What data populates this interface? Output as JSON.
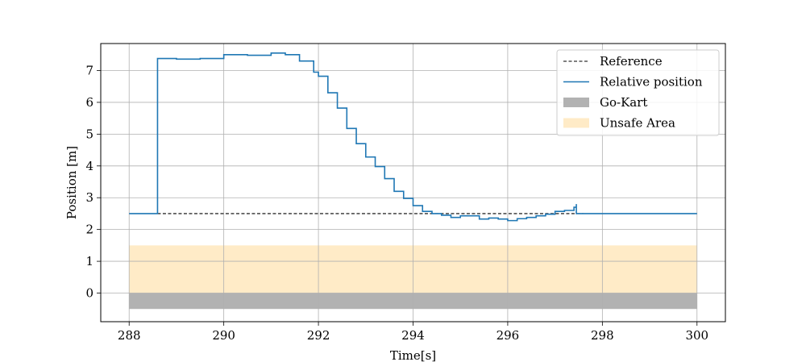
{
  "chart_data": {
    "type": "line",
    "xlabel": "Time[s]",
    "ylabel": "Position [m]",
    "xlim": [
      287.4,
      300.6
    ],
    "ylim": [
      -0.9,
      7.85
    ],
    "xticks": [
      288,
      290,
      292,
      294,
      296,
      298,
      300
    ],
    "yticks": [
      0,
      1,
      2,
      3,
      4,
      5,
      6,
      7
    ],
    "grid": true,
    "legend_position": "top-right",
    "series": [
      {
        "name": "Reference",
        "style": "dashed",
        "color": "#000000",
        "x": [
          288.6,
          297.6
        ],
        "y": [
          2.5,
          2.5
        ]
      },
      {
        "name": "Relative position",
        "style": "step",
        "color": "#1f77b4",
        "x": [
          288.0,
          288.6,
          288.6,
          288.62,
          289.0,
          289.5,
          290.0,
          290.5,
          291.0,
          291.3,
          291.6,
          291.9,
          292.0,
          292.2,
          292.4,
          292.6,
          292.8,
          293.0,
          293.2,
          293.4,
          293.6,
          293.8,
          294.0,
          294.2,
          294.4,
          294.6,
          294.8,
          295.0,
          295.2,
          295.4,
          295.6,
          295.8,
          296.0,
          296.2,
          296.4,
          296.6,
          296.8,
          297.0,
          297.2,
          297.4,
          297.45,
          297.45,
          298.0,
          299.0,
          300.0
        ],
        "y": [
          2.5,
          2.5,
          7.38,
          7.38,
          7.36,
          7.38,
          7.5,
          7.48,
          7.55,
          7.5,
          7.3,
          6.95,
          6.82,
          6.3,
          5.82,
          5.18,
          4.7,
          4.28,
          3.98,
          3.6,
          3.2,
          2.98,
          2.75,
          2.57,
          2.5,
          2.45,
          2.38,
          2.43,
          2.43,
          2.33,
          2.36,
          2.33,
          2.28,
          2.34,
          2.38,
          2.43,
          2.48,
          2.57,
          2.6,
          2.7,
          2.8,
          2.5,
          2.5,
          2.5,
          2.5
        ]
      }
    ],
    "areas": [
      {
        "name": "Go-Kart",
        "color": "#b2b2b2",
        "x": [
          288,
          300
        ],
        "y": [
          -0.5,
          0
        ]
      },
      {
        "name": "Unsafe Area",
        "color": "#ffebc7",
        "x": [
          288,
          300
        ],
        "y": [
          0,
          1.5
        ]
      }
    ]
  }
}
